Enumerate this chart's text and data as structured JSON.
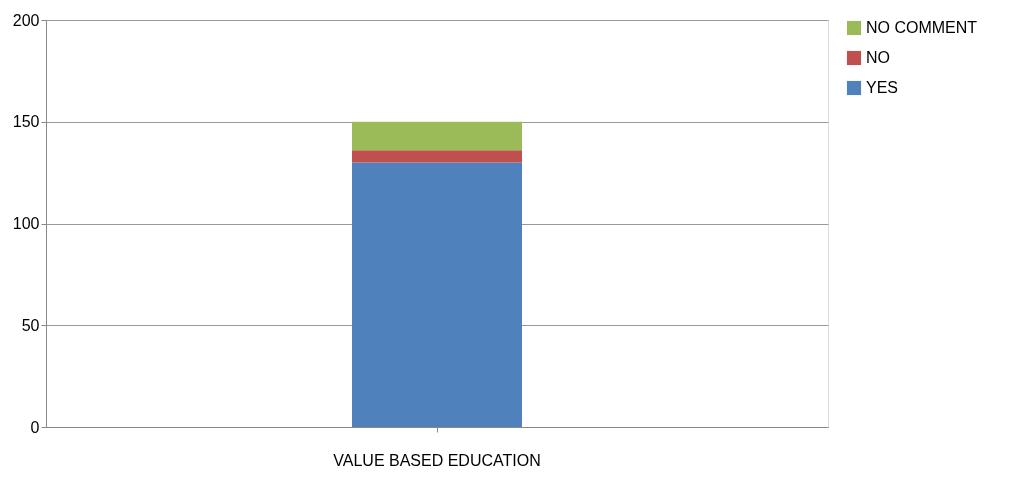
{
  "chart_data": {
    "type": "bar",
    "stacked": true,
    "categories": [
      "VALUE BASED EDUCATION"
    ],
    "series": [
      {
        "name": "YES",
        "color": "#4f81bd",
        "values": [
          130
        ]
      },
      {
        "name": "NO",
        "color": "#c0504d",
        "values": [
          6
        ]
      },
      {
        "name": "NO COMMENT",
        "color": "#9bbb59",
        "values": [
          14
        ]
      }
    ],
    "ylim": [
      0,
      200
    ],
    "yticks": [
      0,
      50,
      100,
      150,
      200
    ],
    "grid": "y",
    "legend": "right"
  }
}
